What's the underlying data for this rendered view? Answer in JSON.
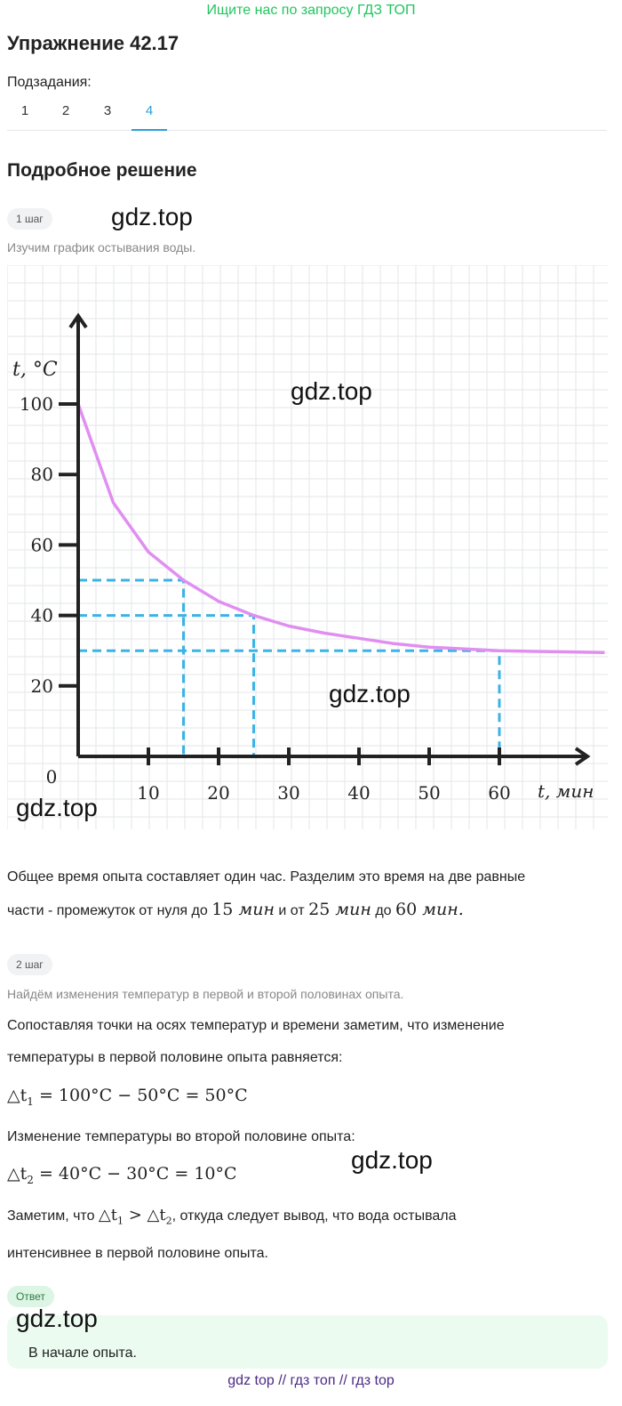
{
  "banner": "Ищите нас по запросу ГДЗ ТОП",
  "title": "Упражнение 42.17",
  "subtasks": {
    "label": "Подзадания:",
    "tabs": [
      "1",
      "2",
      "3",
      "4"
    ],
    "active": "4"
  },
  "section_title": "Подробное решение",
  "watermark": "gdz.top",
  "steps": [
    {
      "badge": "1 шаг",
      "hint": "Изучим график остывания воды.",
      "text_line1": "Общее время опыта составляет один час. Разделим это время на две равные",
      "text_line2_a": "части - промежуток от нуля до",
      "t1": "15",
      "unit": "мин",
      "text_line2_b": "и от",
      "t2": "25",
      "text_line2_c": "до",
      "t3": "60"
    },
    {
      "badge": "2 шаг",
      "hint": "Найдём изменения температур в первой и второй половинах опыта.",
      "p1_line1": "Сопоставляя точки на осях температур и времени заметим, что изменение",
      "p1_line2": "температуры в первой половине опыта равняется:",
      "formula1": {
        "lhs": "△t",
        "sub": "1",
        "rest": "= 100°C − 50°C = 50°C"
      },
      "p2": "Изменение температуры во второй половине опыта:",
      "formula2": {
        "lhs": "△t",
        "sub": "2",
        "rest": "= 40°C − 30°C = 10°C"
      },
      "p3_a": "Заметим, что",
      "p3_b": "откуда следует вывод, что вода остывала",
      "p3_line2": "интенсивнее в первой половине опыта."
    }
  ],
  "answer": {
    "badge": "Ответ",
    "text": "В начале опыта."
  },
  "footer": "gdz top  //  гдз топ  //  гдз top",
  "chart_data": {
    "type": "line",
    "xlabel": "t,  мин",
    "ylabel": "t,  °C",
    "x_ticks": [
      10,
      20,
      30,
      40,
      50,
      60
    ],
    "y_ticks": [
      20,
      40,
      60,
      80,
      100
    ],
    "origin_label": "0",
    "series": [
      {
        "color": "#e08ff0",
        "points": [
          [
            0,
            100
          ],
          [
            5,
            72
          ],
          [
            10,
            58
          ],
          [
            15,
            50
          ],
          [
            20,
            44
          ],
          [
            25,
            40
          ],
          [
            30,
            37
          ],
          [
            35,
            35
          ],
          [
            40,
            33.5
          ],
          [
            45,
            32
          ],
          [
            50,
            31
          ],
          [
            55,
            30.5
          ],
          [
            60,
            30
          ],
          [
            65,
            29.8
          ],
          [
            75,
            29.5
          ]
        ]
      }
    ],
    "guides": [
      {
        "x": 15,
        "y": 50
      },
      {
        "x": 25,
        "y": 40
      },
      {
        "x": 60,
        "y": 30
      }
    ],
    "guide_color": "#3bb3e6",
    "grid": true
  }
}
